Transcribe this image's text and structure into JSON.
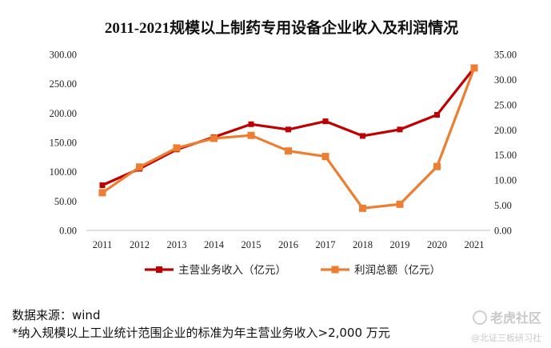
{
  "chart_data": {
    "type": "line",
    "title": "2011-2021规模以上制药专用设备企业收入及利润情况",
    "categories": [
      "2011",
      "2012",
      "2013",
      "2014",
      "2015",
      "2016",
      "2017",
      "2018",
      "2019",
      "2020",
      "2021"
    ],
    "y_left": {
      "ylim": [
        0,
        300
      ],
      "ticks": [
        "0.00",
        "50.00",
        "100.00",
        "150.00",
        "200.00",
        "250.00",
        "300.00"
      ]
    },
    "y_right": {
      "ylim": [
        0,
        35
      ],
      "ticks": [
        "0.00",
        "5.00",
        "10.00",
        "15.00",
        "20.00",
        "25.00",
        "30.00",
        "35.00"
      ]
    },
    "grid": false,
    "legend_position": "bottom",
    "series": [
      {
        "name": "主营业务收入（亿元）",
        "axis": "left",
        "color": "#c00000",
        "values": [
          77,
          105,
          138,
          159,
          181,
          172,
          186,
          161,
          172,
          197,
          277
        ]
      },
      {
        "name": "利润总额（亿元）",
        "axis": "right",
        "color": "#ed7d31",
        "values": [
          7.5,
          12.6,
          16.4,
          18.3,
          18.9,
          15.8,
          14.7,
          4.4,
          5.2,
          12.7,
          32.3
        ]
      }
    ]
  },
  "notes": {
    "source": "数据来源：wind",
    "footnote": "*纳入规模以上工业统计范围企业的标准为年主营业务收入>2,000 万元"
  },
  "watermark": {
    "brand": "老虎社区",
    "account": "@北证三板研习社"
  }
}
